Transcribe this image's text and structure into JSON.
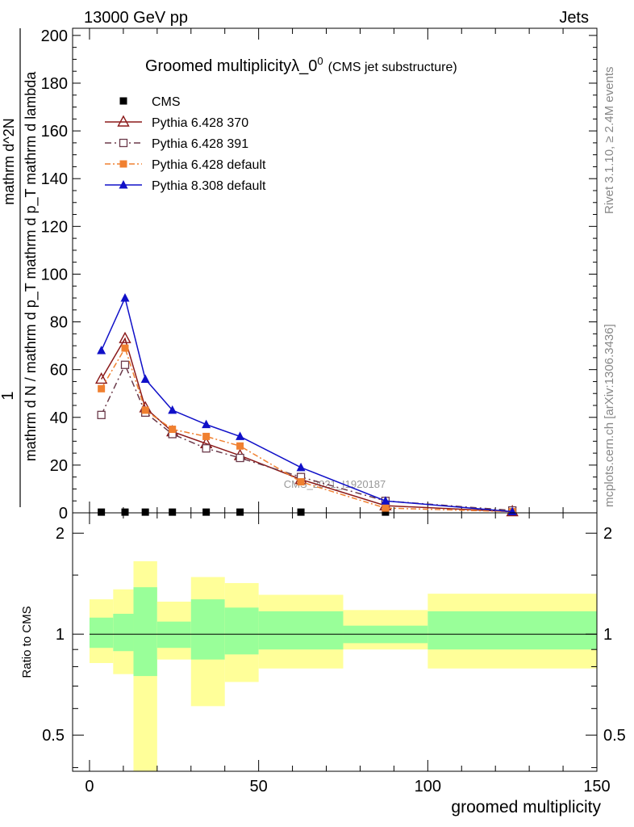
{
  "header": {
    "left": "13000 GeV pp",
    "right": "Jets"
  },
  "side": {
    "right_top": "Rivet 3.1.10, ≥ 2.4M events",
    "right_bottom": "mcplots.cern.ch [arXiv:1306.3436]"
  },
  "colors": {
    "cms": "#000000",
    "py370": "#8b1a1a",
    "py391": "#6b3a4a",
    "py6def": "#f08030",
    "py8def": "#1010c8",
    "band_inner": "#99ff99",
    "band_outer": "#ffff99"
  },
  "chart_data": [
    {
      "type": "line",
      "title": "Groomed multiplicityλ_0",
      "title_sup": "0",
      "subtitle": "(CMS jet substructure)",
      "watermark": "CMS_2021_I1920187",
      "ylabel_num": "1",
      "ylabel_den": "mathrm d N / mathrm d p_T mathrm d p_T mathrm d lambda",
      "ylabel_right": "mathrm d^2N",
      "xlim": [
        -5,
        150
      ],
      "ylim": [
        0,
        203
      ],
      "yticks": [
        0,
        20,
        40,
        60,
        80,
        100,
        120,
        140,
        160,
        180,
        200
      ],
      "ytick_labels": [
        "0",
        "20",
        "40",
        "60",
        "80",
        "100",
        "120",
        "140",
        "160",
        "180",
        "200"
      ],
      "series": [
        {
          "name": "CMS",
          "marker": "square",
          "x": [
            3.5,
            10.5,
            16.5,
            24.5,
            34.5,
            44.5,
            62.5,
            87.5,
            125
          ],
          "values": [
            0.3,
            0.3,
            0.3,
            0.3,
            0.3,
            0.3,
            0.3,
            0.3,
            0.3
          ]
        },
        {
          "name": "Pythia 6.428 370",
          "marker": "triangle-open",
          "x": [
            3.5,
            10.5,
            16.5,
            24.5,
            34.5,
            44.5,
            62.5,
            87.5,
            125
          ],
          "values": [
            56,
            73,
            44,
            34,
            29,
            24,
            14,
            3,
            0.5
          ]
        },
        {
          "name": "Pythia 6.428 391",
          "marker": "square-open",
          "x": [
            3.5,
            10.5,
            16.5,
            24.5,
            34.5,
            44.5,
            62.5,
            87.5,
            125
          ],
          "values": [
            41,
            62,
            42,
            33,
            27,
            23,
            15,
            5,
            1
          ]
        },
        {
          "name": "Pythia 6.428 default",
          "marker": "square",
          "x": [
            3.5,
            10.5,
            16.5,
            24.5,
            34.5,
            44.5,
            62.5,
            87.5,
            125
          ],
          "values": [
            52,
            69,
            43,
            35,
            32,
            28,
            13,
            2,
            0.5
          ]
        },
        {
          "name": "Pythia 8.308 default",
          "marker": "triangle",
          "x": [
            3.5,
            10.5,
            16.5,
            24.5,
            34.5,
            44.5,
            62.5,
            87.5,
            125
          ],
          "values": [
            68,
            90,
            56,
            43,
            37,
            32,
            19,
            5,
            0.5
          ]
        }
      ]
    },
    {
      "type": "area",
      "ylabel": "Ratio to CMS",
      "xlabel": "groomed multiplicity",
      "xlim": [
        -5,
        150
      ],
      "ylim": [
        0.39,
        2.3
      ],
      "xticks": [
        0,
        50,
        100,
        150
      ],
      "xtick_labels": [
        "0",
        "50",
        "100",
        "150"
      ],
      "yticks": [
        0.5,
        1,
        2
      ],
      "ytick_labels": [
        "0.5",
        "1",
        "2"
      ],
      "reference": 1,
      "bins": [
        {
          "lo": 0,
          "hi": 7,
          "inner": [
            0.91,
            1.12
          ],
          "outer": [
            0.82,
            1.27
          ]
        },
        {
          "lo": 7,
          "hi": 13,
          "inner": [
            0.89,
            1.15
          ],
          "outer": [
            0.76,
            1.36
          ]
        },
        {
          "lo": 13,
          "hi": 20,
          "inner": [
            0.75,
            1.38
          ],
          "outer": [
            0.35,
            1.65
          ]
        },
        {
          "lo": 20,
          "hi": 30,
          "inner": [
            0.91,
            1.09
          ],
          "outer": [
            0.84,
            1.25
          ]
        },
        {
          "lo": 30,
          "hi": 40,
          "inner": [
            0.84,
            1.27
          ],
          "outer": [
            0.61,
            1.48
          ]
        },
        {
          "lo": 40,
          "hi": 50,
          "inner": [
            0.87,
            1.2
          ],
          "outer": [
            0.72,
            1.42
          ]
        },
        {
          "lo": 50,
          "hi": 75,
          "inner": [
            0.9,
            1.17
          ],
          "outer": [
            0.79,
            1.31
          ]
        },
        {
          "lo": 75,
          "hi": 100,
          "inner": [
            0.94,
            1.06
          ],
          "outer": [
            0.9,
            1.18
          ]
        },
        {
          "lo": 100,
          "hi": 150,
          "inner": [
            0.9,
            1.17
          ],
          "outer": [
            0.79,
            1.32
          ]
        }
      ]
    }
  ]
}
